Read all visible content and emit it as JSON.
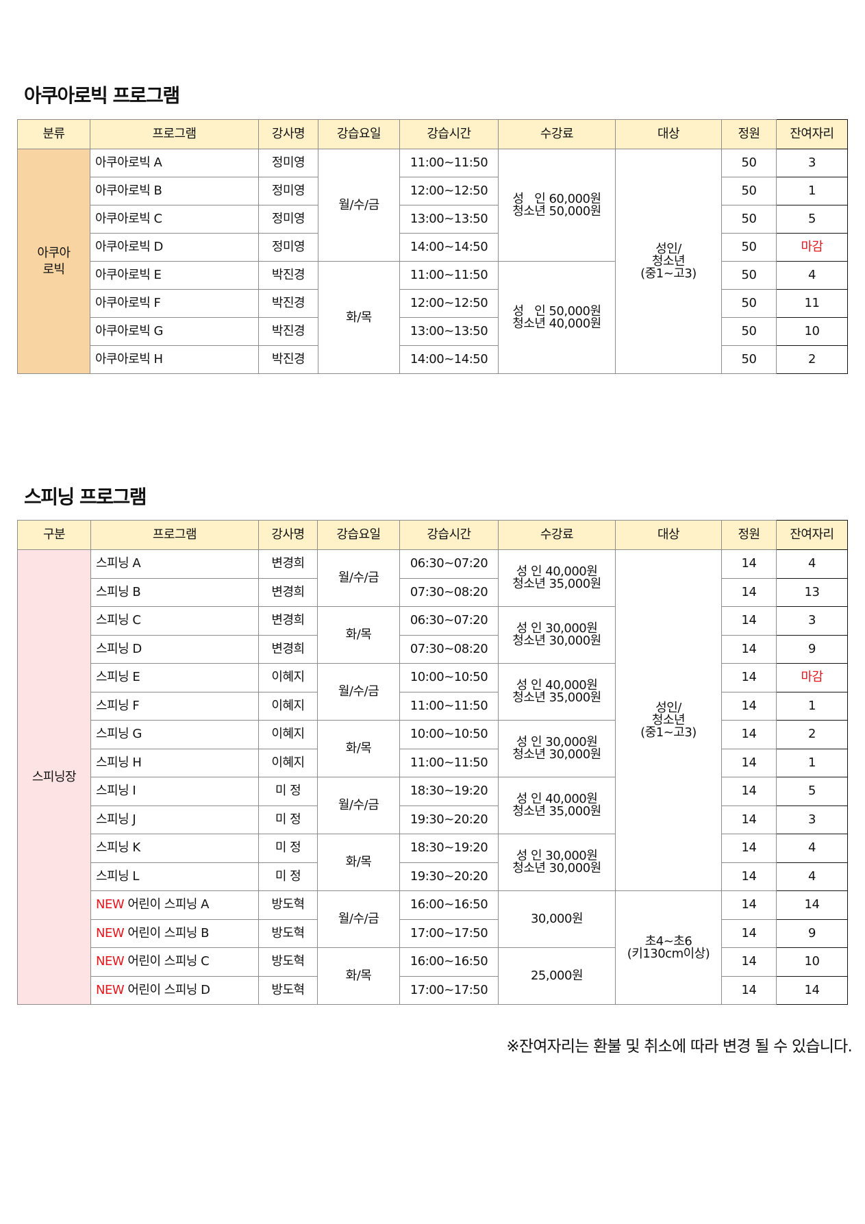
{
  "aquarobic": {
    "title": "아쿠아로빅 프로그램",
    "headers": [
      "분류",
      "프로그램",
      "강사명",
      "강습요일",
      "강습시간",
      "수강료",
      "대상",
      "정원",
      "잔여자리"
    ],
    "category": "아쿠아\n로빅",
    "rows": [
      {
        "program": "아쿠아로빅 A",
        "instructor": "정미영",
        "time": "11:00~11:50",
        "capacity": "50",
        "remaining": "3"
      },
      {
        "program": "아쿠아로빅 B",
        "instructor": "정미영",
        "time": "12:00~12:50",
        "capacity": "50",
        "remaining": "1"
      },
      {
        "program": "아쿠아로빅 C",
        "instructor": "정미영",
        "time": "13:00~13:50",
        "capacity": "50",
        "remaining": "5"
      },
      {
        "program": "아쿠아로빅 D",
        "instructor": "정미영",
        "time": "14:00~14:50",
        "capacity": "50",
        "remaining": "마감"
      },
      {
        "program": "아쿠아로빅 E",
        "instructor": "박진경",
        "time": "11:00~11:50",
        "capacity": "50",
        "remaining": "4"
      },
      {
        "program": "아쿠아로빅 F",
        "instructor": "박진경",
        "time": "12:00~12:50",
        "capacity": "50",
        "remaining": "11"
      },
      {
        "program": "아쿠아로빅 G",
        "instructor": "박진경",
        "time": "13:00~13:50",
        "capacity": "50",
        "remaining": "10"
      },
      {
        "program": "아쿠아로빅 H",
        "instructor": "박진경",
        "time": "14:00~14:50",
        "capacity": "50",
        "remaining": "2"
      }
    ],
    "day_groups": [
      {
        "label": "월/수/금",
        "span": 4
      },
      {
        "label": "화/목",
        "span": 4
      }
    ],
    "fee_groups": [
      {
        "label": "성   인 60,000원\n청소년 50,000원",
        "span": 4
      },
      {
        "label": "성   인 50,000원\n청소년 40,000원",
        "span": 4
      }
    ],
    "target_groups": [
      {
        "label": "성인/\n청소년\n(중1~고3)",
        "span": 8
      }
    ]
  },
  "spinning": {
    "title": "스피닝 프로그램",
    "headers": [
      "구분",
      "프로그램",
      "강사명",
      "강습요일",
      "강습시간",
      "수강료",
      "대상",
      "정원",
      "잔여자리"
    ],
    "category": "스피닝장",
    "rows": [
      {
        "program": "스피닝 A",
        "instructor": "변경희",
        "time": "06:30~07:20",
        "capacity": "14",
        "remaining": "4"
      },
      {
        "program": "스피닝 B",
        "instructor": "변경희",
        "time": "07:30~08:20",
        "capacity": "14",
        "remaining": "13"
      },
      {
        "program": "스피닝 C",
        "instructor": "변경희",
        "time": "06:30~07:20",
        "capacity": "14",
        "remaining": "3"
      },
      {
        "program": "스피닝 D",
        "instructor": "변경희",
        "time": "07:30~08:20",
        "capacity": "14",
        "remaining": "9"
      },
      {
        "program": "스피닝 E",
        "instructor": "이혜지",
        "time": "10:00~10:50",
        "capacity": "14",
        "remaining": "마감"
      },
      {
        "program": "스피닝 F",
        "instructor": "이혜지",
        "time": "11:00~11:50",
        "capacity": "14",
        "remaining": "1"
      },
      {
        "program": "스피닝 G",
        "instructor": "이혜지",
        "time": "10:00~10:50",
        "capacity": "14",
        "remaining": "2"
      },
      {
        "program": "스피닝 H",
        "instructor": "이혜지",
        "time": "11:00~11:50",
        "capacity": "14",
        "remaining": "1"
      },
      {
        "program": "스피닝 I",
        "instructor": "미 정",
        "time": "18:30~19:20",
        "capacity": "14",
        "remaining": "5"
      },
      {
        "program": "스피닝 J",
        "instructor": "미 정",
        "time": "19:30~20:20",
        "capacity": "14",
        "remaining": "3"
      },
      {
        "program": "스피닝 K",
        "instructor": "미 정",
        "time": "18:30~19:20",
        "capacity": "14",
        "remaining": "4"
      },
      {
        "program": "스피닝 L",
        "instructor": "미 정",
        "time": "19:30~20:20",
        "capacity": "14",
        "remaining": "4"
      },
      {
        "badge": "NEW",
        "program": "어린이 스피닝 A",
        "instructor": "방도혁",
        "time": "16:00~16:50",
        "capacity": "14",
        "remaining": "14"
      },
      {
        "badge": "NEW",
        "program": "어린이 스피닝 B",
        "instructor": "방도혁",
        "time": "17:00~17:50",
        "capacity": "14",
        "remaining": "9"
      },
      {
        "badge": "NEW",
        "program": "어린이 스피닝 C",
        "instructor": "방도혁",
        "time": "16:00~16:50",
        "capacity": "14",
        "remaining": "10"
      },
      {
        "badge": "NEW",
        "program": "어린이 스피닝 D",
        "instructor": "방도혁",
        "time": "17:00~17:50",
        "capacity": "14",
        "remaining": "14"
      }
    ],
    "day_groups": [
      {
        "label": "월/수/금",
        "span": 2
      },
      {
        "label": "화/목",
        "span": 2
      },
      {
        "label": "월/수/금",
        "span": 2
      },
      {
        "label": "화/목",
        "span": 2
      },
      {
        "label": "월/수/금",
        "span": 2
      },
      {
        "label": "화/목",
        "span": 2
      },
      {
        "label": "월/수/금",
        "span": 2
      },
      {
        "label": "화/목",
        "span": 2
      }
    ],
    "fee_groups": [
      {
        "label": "성 인 40,000원\n청소년 35,000원",
        "span": 2
      },
      {
        "label": "성 인 30,000원\n청소년 30,000원",
        "span": 2
      },
      {
        "label": "성 인 40,000원\n청소년 35,000원",
        "span": 2
      },
      {
        "label": "성 인 30,000원\n청소년 30,000원",
        "span": 2
      },
      {
        "label": "성 인 40,000원\n청소년 35,000원",
        "span": 2
      },
      {
        "label": "성 인 30,000원\n청소년 30,000원",
        "span": 2
      },
      {
        "label": "30,000원",
        "span": 2
      },
      {
        "label": "25,000원",
        "span": 2
      }
    ],
    "target_groups": [
      {
        "label": "성인/\n청소년\n(중1~고3)",
        "span": 12
      },
      {
        "label": "초4~초6\n(키130cm이상)",
        "span": 4
      }
    ]
  },
  "closed_label": "마감",
  "colors": {
    "header_bg": "#fff2c8",
    "aquarobic_category_bg": "#f8d4a2",
    "spinning_category_bg": "#fde3e3",
    "closed_text": "#e8141b",
    "new_badge": "#e8141b"
  },
  "footnote": "※잔여자리는 환불 및 취소에 따라 변경 될 수 있습니다."
}
